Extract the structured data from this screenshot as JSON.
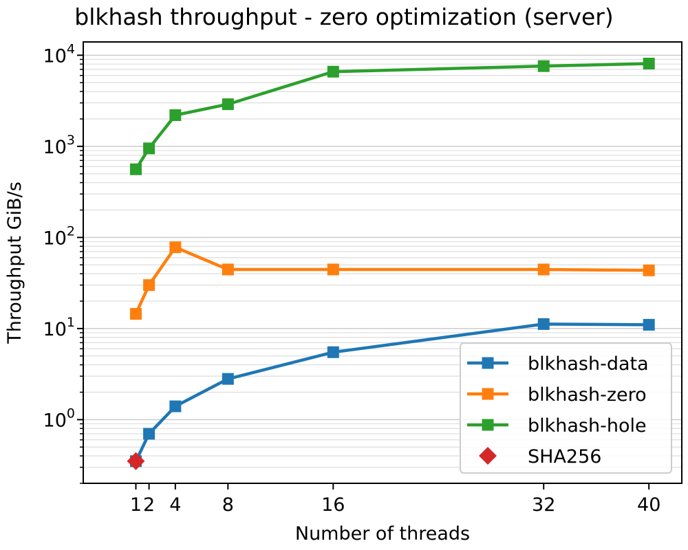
{
  "chart_data": {
    "type": "line",
    "title": "blkhash throughput - zero optimization (server)",
    "xlabel": "Number of threads",
    "ylabel": "Throughput GiB/s",
    "yscale": "log",
    "ylim": [
      0.2,
      14000
    ],
    "xlim": [
      -3,
      42.5
    ],
    "xticks": [
      1,
      2,
      4,
      8,
      16,
      32,
      40
    ],
    "yticks": [
      {
        "value": 1,
        "base": "10",
        "exp": "0"
      },
      {
        "value": 10,
        "base": "10",
        "exp": "1"
      },
      {
        "value": 100,
        "base": "10",
        "exp": "2"
      },
      {
        "value": 1000,
        "base": "10",
        "exp": "3"
      },
      {
        "value": 10000,
        "base": "10",
        "exp": "4"
      }
    ],
    "grid": "y (major and minor)",
    "legend_position": "lower-right",
    "series": [
      {
        "name": "blkhash-data",
        "color": "#1f77b4",
        "marker": "square",
        "line": true,
        "x": [
          1,
          2,
          4,
          8,
          16,
          32,
          40
        ],
        "values": [
          0.35,
          0.7,
          1.4,
          2.8,
          5.5,
          11.2,
          11.0
        ]
      },
      {
        "name": "blkhash-zero",
        "color": "#ff7f0e",
        "marker": "square",
        "line": true,
        "x": [
          1,
          2,
          4,
          8,
          16,
          32,
          40
        ],
        "values": [
          14.5,
          30,
          78,
          44.5,
          44.5,
          44.5,
          43.5
        ]
      },
      {
        "name": "blkhash-hole",
        "color": "#2ca02c",
        "marker": "square",
        "line": true,
        "x": [
          1,
          2,
          4,
          8,
          16,
          32,
          40
        ],
        "values": [
          560,
          950,
          2200,
          2900,
          6600,
          7600,
          8100
        ]
      },
      {
        "name": "SHA256",
        "color": "#d62728",
        "marker": "diamond",
        "line": false,
        "x": [
          1
        ],
        "values": [
          0.35
        ]
      }
    ]
  }
}
